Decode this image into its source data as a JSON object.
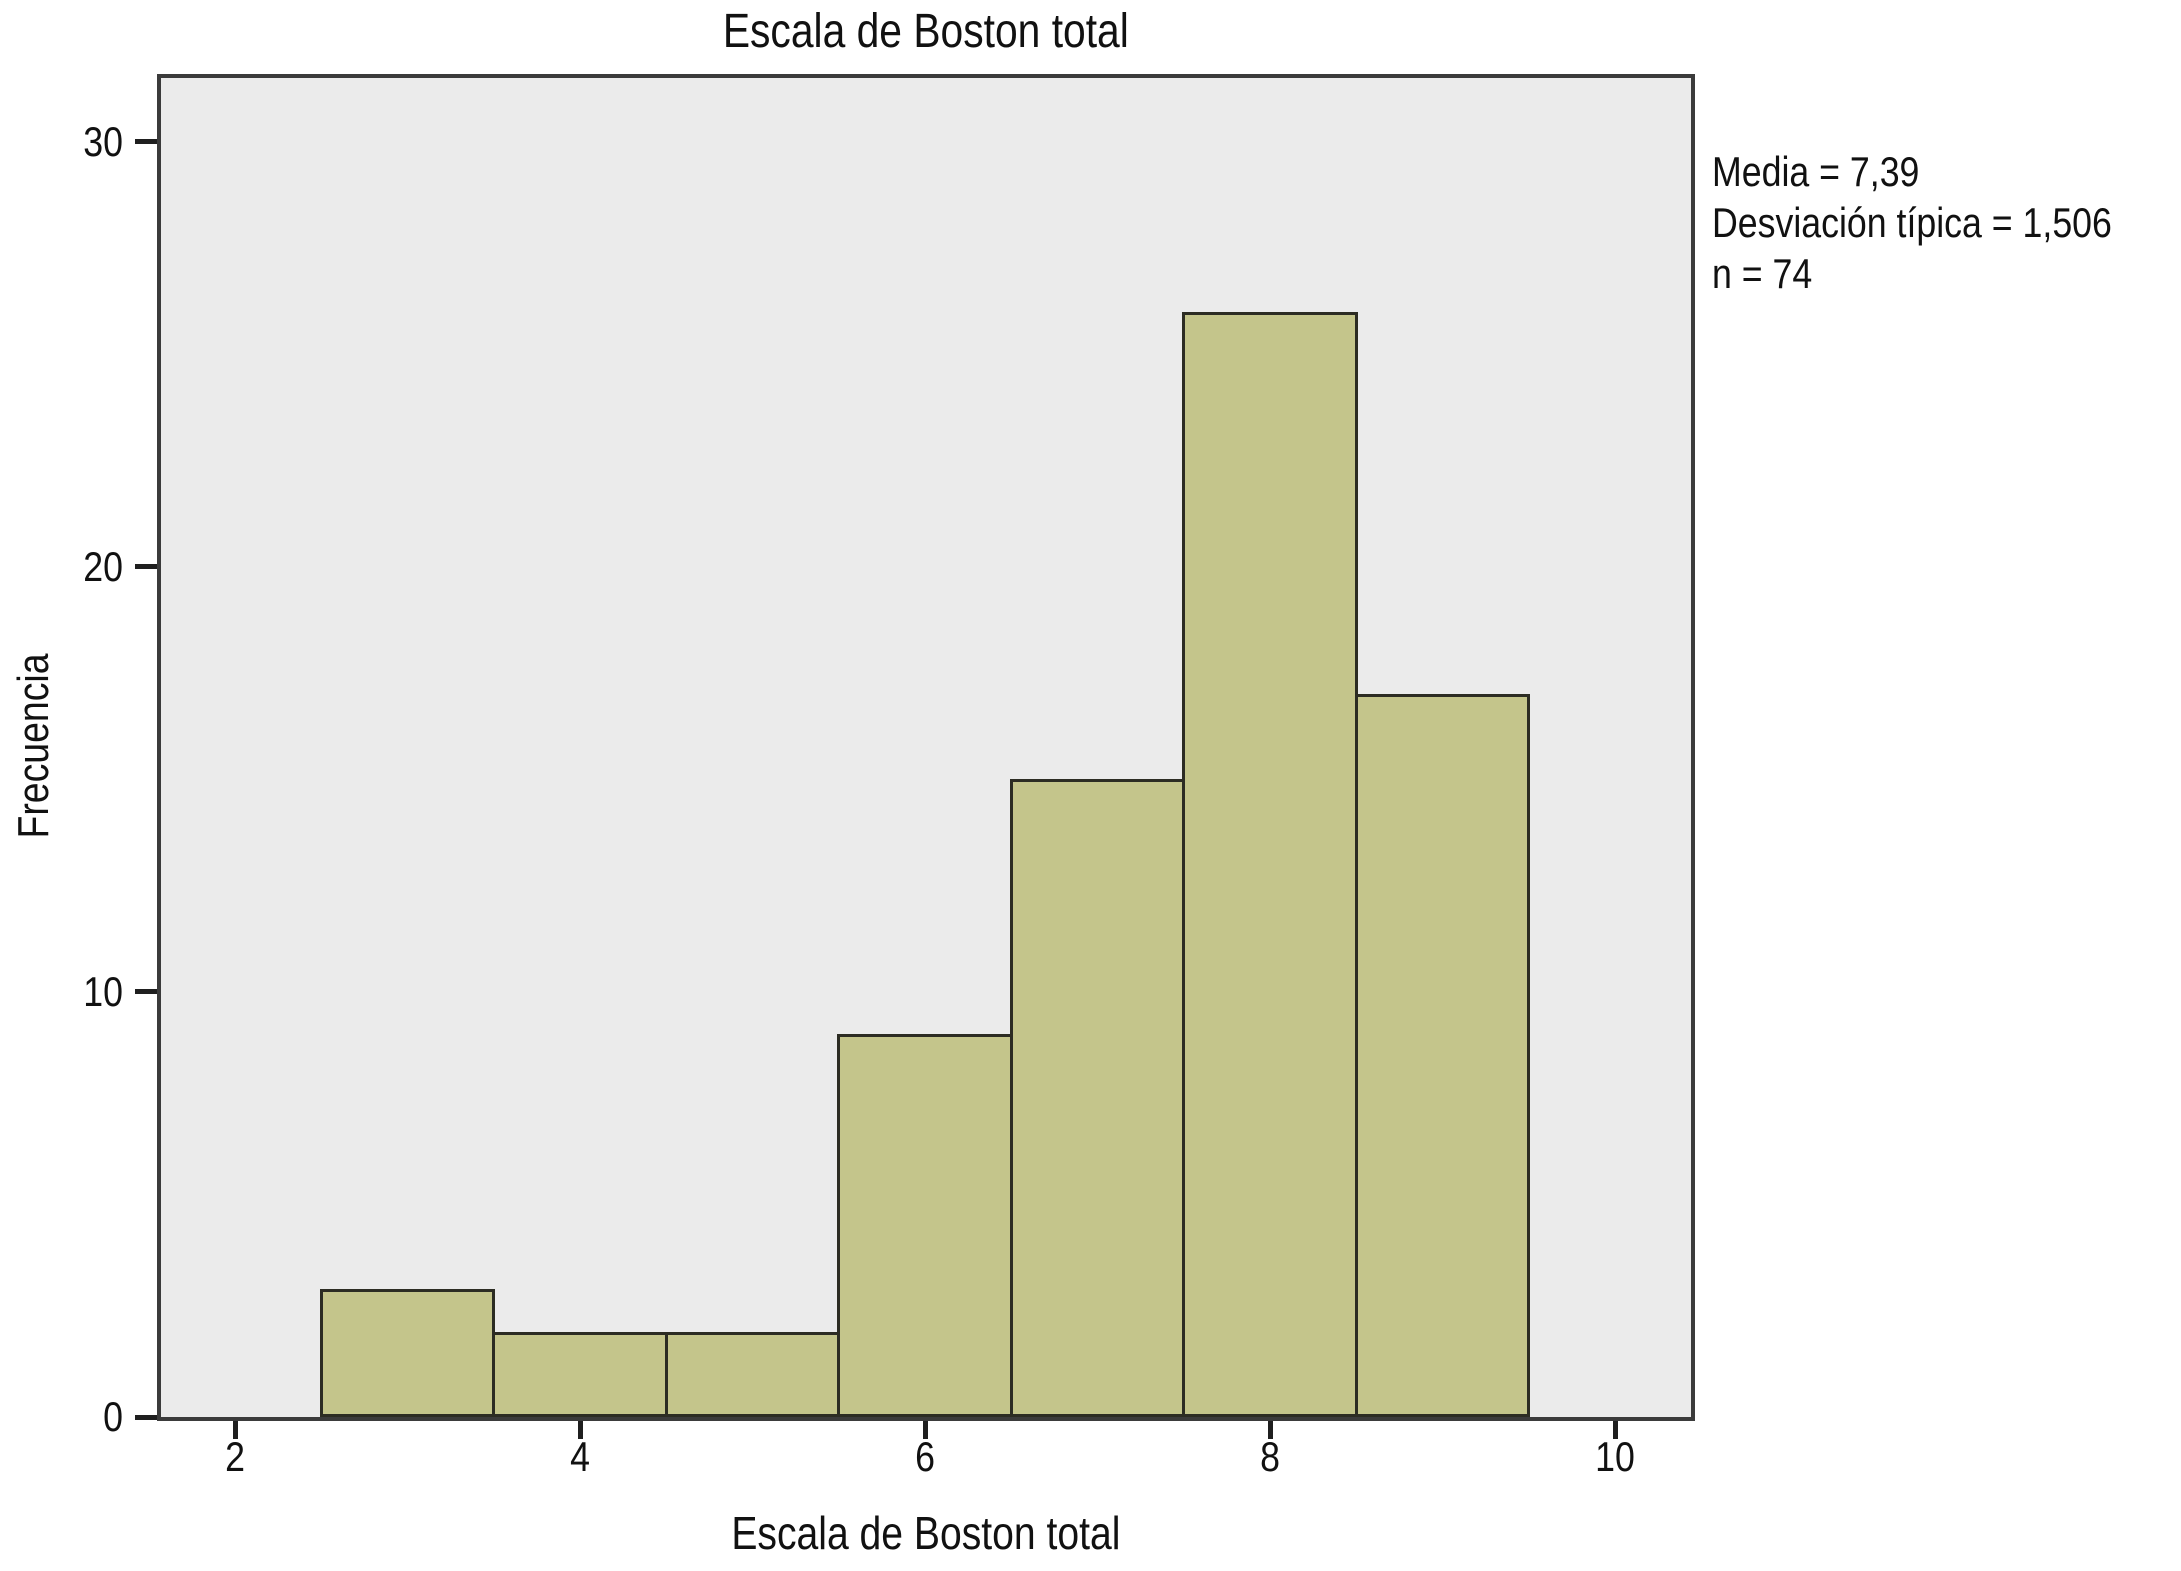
{
  "chart_data": {
    "type": "bar",
    "subtype": "histogram",
    "title": "Escala de Boston total",
    "xlabel": "Escala de Boston total",
    "ylabel": "Frecuencia",
    "bin_edges": [
      2.5,
      3.5,
      4.5,
      5.5,
      6.5,
      7.5,
      8.5,
      9.5
    ],
    "counts": [
      3,
      2,
      2,
      9,
      15,
      26,
      17
    ],
    "n_total": 74,
    "x_ticks": [
      2,
      4,
      6,
      8,
      10
    ],
    "y_ticks": [
      0,
      10,
      20,
      30
    ],
    "xlim": [
      1.57,
      10.44
    ],
    "ylim": [
      0,
      31.5
    ],
    "grid": false,
    "legend_position": "none",
    "annotation_lines": [
      "Media = 7,39",
      "Desviación típica = 1,506",
      "n = 74"
    ],
    "colors": {
      "bar_fill": "#c4c58b",
      "bar_border": "#2c2c23",
      "plot_background": "#ebebeb",
      "frame": "#3b3b3b",
      "tick": "#1f1f1f",
      "text": "#111111",
      "page_background": "#ffffff"
    }
  }
}
